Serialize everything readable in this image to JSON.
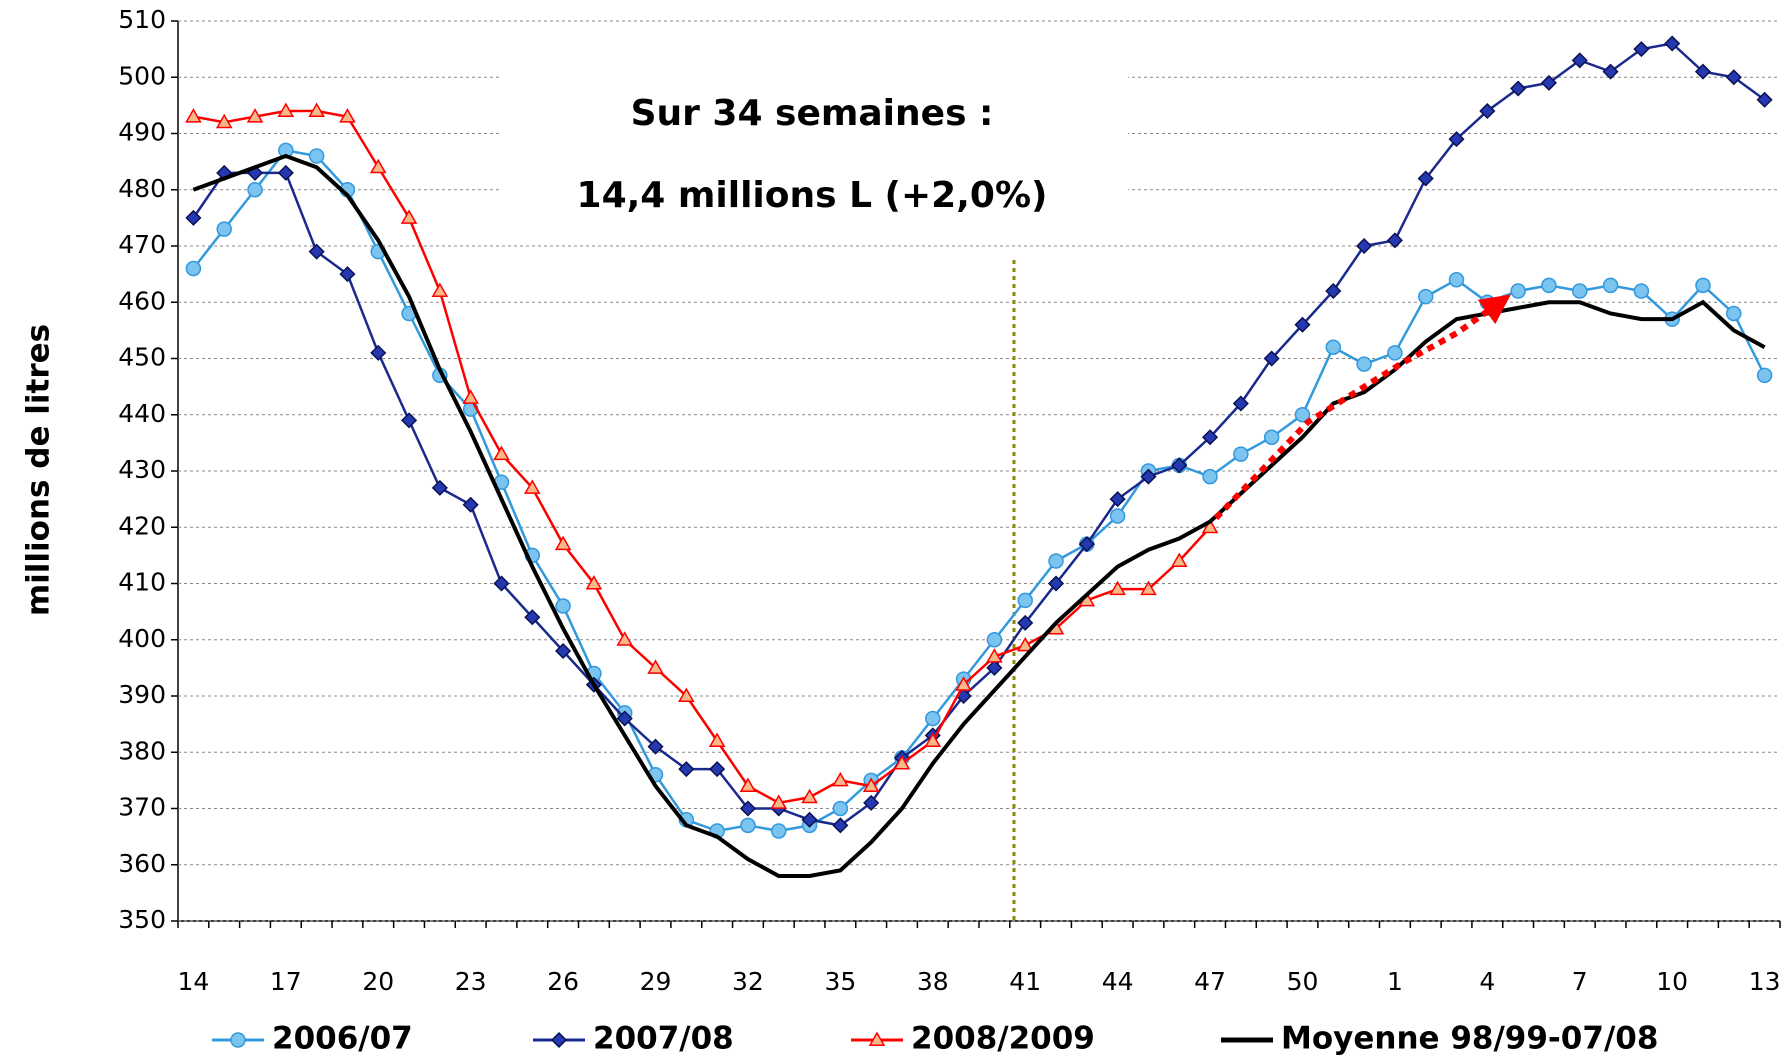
{
  "chart_data": {
    "type": "line",
    "y_label": "millions de litres",
    "annotations": [
      "Sur 34 semaines :",
      "14,4 millions L (+2,0%)"
    ],
    "categories": [
      14,
      null,
      null,
      17,
      null,
      null,
      20,
      null,
      null,
      23,
      null,
      null,
      26,
      null,
      null,
      29,
      null,
      null,
      32,
      null,
      null,
      35,
      null,
      null,
      38,
      null,
      null,
      41,
      null,
      null,
      44,
      null,
      null,
      47,
      null,
      null,
      50,
      null,
      null,
      1,
      null,
      null,
      4,
      null,
      null,
      7,
      null,
      null,
      10,
      null,
      null,
      13
    ],
    "series": [
      {
        "name": "2006/07",
        "color": "#3399dd",
        "marker": "circle",
        "marker_color": "#7cc4f0",
        "values": [
          466,
          473,
          480,
          487,
          486,
          480,
          469,
          458,
          447,
          441,
          428,
          415,
          406,
          394,
          387,
          376,
          368,
          366,
          367,
          366,
          367,
          370,
          375,
          379,
          386,
          393,
          400,
          407,
          414,
          417,
          422,
          430,
          431,
          429,
          433,
          436,
          440,
          452,
          449,
          451,
          461,
          464,
          460,
          462,
          463,
          462,
          463,
          462,
          457,
          463,
          458,
          447
        ]
      },
      {
        "name": "2007/08",
        "color": "#1a2a8c",
        "marker": "diamond",
        "marker_color": "#2438b0",
        "values": [
          475,
          483,
          483,
          483,
          469,
          465,
          451,
          439,
          427,
          424,
          410,
          404,
          398,
          392,
          386,
          381,
          377,
          377,
          370,
          370,
          368,
          367,
          371,
          379,
          383,
          390,
          395,
          403,
          410,
          417,
          425,
          429,
          431,
          436,
          442,
          450,
          456,
          462,
          470,
          471,
          482,
          489,
          494,
          498,
          499,
          503,
          501,
          505,
          506,
          501,
          500,
          496
        ]
      },
      {
        "name": "2008/2009",
        "color": "#ff0000",
        "marker": "triangle",
        "marker_color": "#f8b88a",
        "values": [
          493,
          492,
          493,
          494,
          494,
          493,
          484,
          475,
          462,
          443,
          433,
          427,
          417,
          410,
          400,
          395,
          390,
          382,
          374,
          371,
          372,
          375,
          374,
          378,
          382,
          392,
          397,
          399,
          402,
          407,
          409,
          409,
          414,
          420,
          null,
          null,
          null,
          null,
          null,
          null,
          null,
          null,
          null,
          null,
          null,
          null,
          null,
          null,
          null,
          null,
          null,
          null
        ]
      },
      {
        "name": "Moyenne 98/99-07/08",
        "color": "#000000",
        "marker": "none",
        "values": [
          480,
          482,
          484,
          486,
          484,
          479,
          471,
          461,
          448,
          437,
          425,
          413,
          402,
          392,
          383,
          374,
          367,
          365,
          361,
          358,
          358,
          359,
          364,
          370,
          378,
          385,
          391,
          397,
          403,
          408,
          413,
          416,
          418,
          421,
          426,
          431,
          436,
          442,
          444,
          448,
          453,
          457,
          458,
          459,
          460,
          460,
          458,
          457,
          457,
          460,
          455,
          452
        ]
      }
    ],
    "ylim": [
      350,
      510
    ],
    "yticks": [
      350,
      360,
      370,
      380,
      390,
      400,
      410,
      420,
      430,
      440,
      450,
      460,
      470,
      480,
      490,
      500,
      510
    ],
    "grid": true,
    "legend": "bottom"
  }
}
